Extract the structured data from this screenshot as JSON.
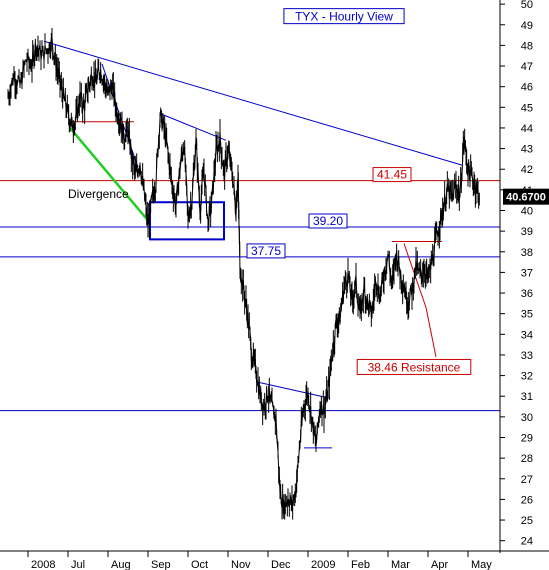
{
  "chart_data": {
    "type": "line",
    "title": "TYX - Hourly View",
    "ylim": [
      23.5,
      50.2
    ],
    "y_ticks": [
      24,
      25,
      26,
      27,
      28,
      29,
      30,
      31,
      32,
      33,
      34,
      35,
      36,
      37,
      38,
      39,
      40,
      41,
      42,
      43,
      44,
      45,
      46,
      47,
      48,
      49,
      50
    ],
    "x_ticks": [
      {
        "label": "2008",
        "t": 0.0
      },
      {
        "label": "Jul",
        "t": 1.0
      },
      {
        "label": "Aug",
        "t": 2.0
      },
      {
        "label": "Sep",
        "t": 3.0
      },
      {
        "label": "Oct",
        "t": 4.0
      },
      {
        "label": "Nov",
        "t": 5.0
      },
      {
        "label": "Dec",
        "t": 6.0
      },
      {
        "label": "2009",
        "t": 7.0
      },
      {
        "label": "Feb",
        "t": 8.0
      },
      {
        "label": "Mar",
        "t": 9.0
      },
      {
        "label": "Apr",
        "t": 10.0
      },
      {
        "label": "May",
        "t": 11.0
      }
    ],
    "xlim": [
      -0.5,
      11.5
    ],
    "last_value": "40.6700",
    "grid": false,
    "series": [
      {
        "color": "#000000",
        "points": [
          [
            -0.5,
            45.5
          ],
          [
            -0.35,
            46.6
          ],
          [
            -0.2,
            46.0
          ],
          [
            -0.05,
            47.3
          ],
          [
            0.1,
            47.0
          ],
          [
            0.2,
            48.1
          ],
          [
            0.35,
            47.5
          ],
          [
            0.5,
            47.9
          ],
          [
            0.6,
            48.2
          ],
          [
            0.7,
            47.1
          ],
          [
            0.8,
            46.2
          ],
          [
            0.9,
            45.4
          ],
          [
            1.0,
            44.7
          ],
          [
            1.1,
            44.1
          ],
          [
            1.2,
            44.4
          ],
          [
            1.3,
            45.5
          ],
          [
            1.4,
            45.0
          ],
          [
            1.5,
            45.9
          ],
          [
            1.6,
            46.6
          ],
          [
            1.7,
            46.2
          ],
          [
            1.8,
            46.9
          ],
          [
            1.9,
            46.3
          ],
          [
            2.0,
            45.6
          ],
          [
            2.1,
            46.1
          ],
          [
            2.2,
            45.0
          ],
          [
            2.3,
            44.4
          ],
          [
            2.4,
            43.6
          ],
          [
            2.5,
            43.9
          ],
          [
            2.6,
            42.5
          ],
          [
            2.7,
            41.7
          ],
          [
            2.8,
            42.4
          ],
          [
            2.9,
            40.8
          ],
          [
            3.0,
            39.3
          ],
          [
            3.1,
            40.5
          ],
          [
            3.2,
            41.5
          ],
          [
            3.3,
            44.6
          ],
          [
            3.4,
            44.0
          ],
          [
            3.5,
            42.8
          ],
          [
            3.6,
            41.3
          ],
          [
            3.7,
            40.2
          ],
          [
            3.8,
            42.1
          ],
          [
            3.9,
            43.3
          ],
          [
            4.0,
            39.6
          ],
          [
            4.1,
            40.6
          ],
          [
            4.2,
            43.4
          ],
          [
            4.3,
            40.1
          ],
          [
            4.4,
            41.9
          ],
          [
            4.5,
            39.4
          ],
          [
            4.6,
            40.5
          ],
          [
            4.7,
            42.8
          ],
          [
            4.8,
            43.5
          ],
          [
            4.9,
            41.8
          ],
          [
            5.0,
            42.9
          ],
          [
            5.1,
            41.9
          ],
          [
            5.2,
            40.0
          ],
          [
            5.25,
            41.6
          ],
          [
            5.3,
            37.2
          ],
          [
            5.4,
            36.1
          ],
          [
            5.5,
            34.8
          ],
          [
            5.6,
            32.9
          ],
          [
            5.7,
            32.3
          ],
          [
            5.8,
            31.1
          ],
          [
            5.9,
            30.5
          ],
          [
            6.0,
            31.2
          ],
          [
            6.1,
            30.4
          ],
          [
            6.2,
            29.9
          ],
          [
            6.3,
            26.4
          ],
          [
            6.4,
            25.6
          ],
          [
            6.5,
            26.1
          ],
          [
            6.6,
            25.7
          ],
          [
            6.7,
            26.5
          ],
          [
            6.8,
            28.8
          ],
          [
            6.9,
            30.6
          ],
          [
            7.0,
            31.2
          ],
          [
            7.1,
            29.9
          ],
          [
            7.2,
            28.6
          ],
          [
            7.3,
            30.6
          ],
          [
            7.4,
            30.3
          ],
          [
            7.5,
            31.2
          ],
          [
            7.6,
            33.0
          ],
          [
            7.7,
            34.5
          ],
          [
            7.8,
            34.8
          ],
          [
            7.9,
            36.3
          ],
          [
            8.0,
            36.9
          ],
          [
            8.1,
            35.6
          ],
          [
            8.2,
            36.5
          ],
          [
            8.3,
            34.9
          ],
          [
            8.4,
            36.2
          ],
          [
            8.5,
            35.4
          ],
          [
            8.6,
            35.0
          ],
          [
            8.7,
            36.8
          ],
          [
            8.8,
            35.8
          ],
          [
            8.9,
            36.9
          ],
          [
            9.0,
            37.9
          ],
          [
            9.1,
            36.3
          ],
          [
            9.2,
            38.0
          ],
          [
            9.3,
            37.1
          ],
          [
            9.4,
            36.3
          ],
          [
            9.5,
            35.6
          ],
          [
            9.6,
            36.1
          ],
          [
            9.7,
            37.3
          ],
          [
            9.8,
            36.8
          ],
          [
            9.9,
            37.2
          ],
          [
            10.0,
            36.7
          ],
          [
            10.1,
            37.5
          ],
          [
            10.2,
            38.6
          ],
          [
            10.3,
            39.4
          ],
          [
            10.4,
            40.3
          ],
          [
            10.5,
            41.0
          ],
          [
            10.6,
            40.6
          ],
          [
            10.7,
            41.2
          ],
          [
            10.8,
            40.7
          ],
          [
            10.9,
            43.5
          ],
          [
            11.0,
            42.0
          ],
          [
            11.1,
            41.6
          ],
          [
            11.2,
            41.1
          ],
          [
            11.3,
            40.7
          ]
        ]
      }
    ],
    "lines": [
      {
        "color": "#0000cc",
        "points": [
          [
            0.4,
            48.2
          ],
          [
            10.85,
            42.2
          ]
        ]
      },
      {
        "color": "#0000cc",
        "points": [
          [
            1.85,
            47.1
          ],
          [
            2.75,
            42.1
          ]
        ]
      },
      {
        "color": "#0000cc",
        "points": [
          [
            3.3,
            44.7
          ],
          [
            4.95,
            43.4
          ]
        ]
      },
      {
        "color": "#0000cc",
        "points": [
          [
            5.7,
            31.7
          ],
          [
            7.55,
            30.9
          ]
        ]
      },
      {
        "color": "#0000cc",
        "points": [
          [
            6.9,
            28.5
          ],
          [
            7.6,
            28.5
          ]
        ]
      },
      {
        "color": "#cc0000",
        "points": [
          [
            1.05,
            44.3
          ],
          [
            2.65,
            44.3
          ]
        ]
      },
      {
        "color": "#cc0000",
        "points": [
          [
            9.1,
            38.5
          ],
          [
            10.35,
            38.5
          ]
        ]
      },
      {
        "color": "#cc0000",
        "points": [
          [
            9.4,
            38.4
          ],
          [
            9.95,
            35.3
          ]
        ]
      },
      {
        "color": "#cc0000",
        "points": [
          [
            9.95,
            35.3
          ],
          [
            10.2,
            32.9
          ]
        ]
      },
      {
        "color": "#22cc22",
        "points": [
          [
            1.05,
            44.0
          ],
          [
            3.05,
            39.4
          ]
        ]
      }
    ],
    "hlines": [
      {
        "y": 41.45,
        "color": "#cc0000",
        "label": "41.45",
        "label_t": 8.7
      },
      {
        "y": 39.2,
        "color": "#0000cc",
        "label": "39.20",
        "label_t": 7.1
      },
      {
        "y": 37.75,
        "color": "#0000cc",
        "label": "37.75",
        "label_t": 5.55
      },
      {
        "y": 30.3,
        "color": "#0000cc"
      }
    ],
    "annotations": [
      {
        "text": "Divergence",
        "t": 1.0,
        "y": 40.6
      },
      {
        "text": "38.46 Resistance",
        "t": 9.65,
        "y": 32.2,
        "color": "#cc0000",
        "box": true
      },
      {
        "text": "TYX - Hourly View",
        "t": 7.9,
        "y": 49.2,
        "color": "#0000cc",
        "box": true,
        "title": true
      }
    ],
    "box": {
      "t0": 3.05,
      "t1": 4.9,
      "y0": 38.6,
      "y1": 40.4,
      "color": "#0000cc"
    }
  }
}
